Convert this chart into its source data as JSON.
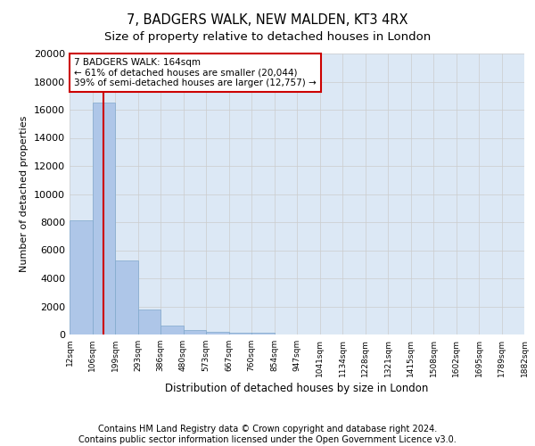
{
  "title_line1": "7, BADGERS WALK, NEW MALDEN, KT3 4RX",
  "title_line2": "Size of property relative to detached houses in London",
  "xlabel": "Distribution of detached houses by size in London",
  "ylabel": "Number of detached properties",
  "bar_values": [
    8100,
    16500,
    5300,
    1800,
    650,
    320,
    170,
    120,
    100,
    0,
    0,
    0,
    0,
    0,
    0,
    0,
    0,
    0,
    0,
    0
  ],
  "bar_labels": [
    "12sqm",
    "106sqm",
    "199sqm",
    "293sqm",
    "386sqm",
    "480sqm",
    "573sqm",
    "667sqm",
    "760sqm",
    "854sqm",
    "947sqm",
    "1041sqm",
    "1134sqm",
    "1228sqm",
    "1321sqm",
    "1415sqm",
    "1508sqm",
    "1602sqm",
    "1695sqm",
    "1789sqm",
    "1882sqm"
  ],
  "bar_color": "#aec6e8",
  "bar_edge_color": "#7fa8cc",
  "vline_x": 1.5,
  "vline_color": "#cc0000",
  "annotation_box_text": "7 BADGERS WALK: 164sqm\n← 61% of detached houses are smaller (20,044)\n39% of semi-detached houses are larger (12,757) →",
  "annotation_box_color": "#cc0000",
  "annotation_box_facecolor": "white",
  "ylim": [
    0,
    20000
  ],
  "yticks": [
    0,
    2000,
    4000,
    6000,
    8000,
    10000,
    12000,
    14000,
    16000,
    18000,
    20000
  ],
  "grid_color": "#cccccc",
  "background_color": "#dce8f5",
  "footer_line1": "Contains HM Land Registry data © Crown copyright and database right 2024.",
  "footer_line2": "Contains public sector information licensed under the Open Government Licence v3.0.",
  "title_fontsize": 10.5,
  "subtitle_fontsize": 9.5,
  "footer_fontsize": 7,
  "num_bars": 20
}
